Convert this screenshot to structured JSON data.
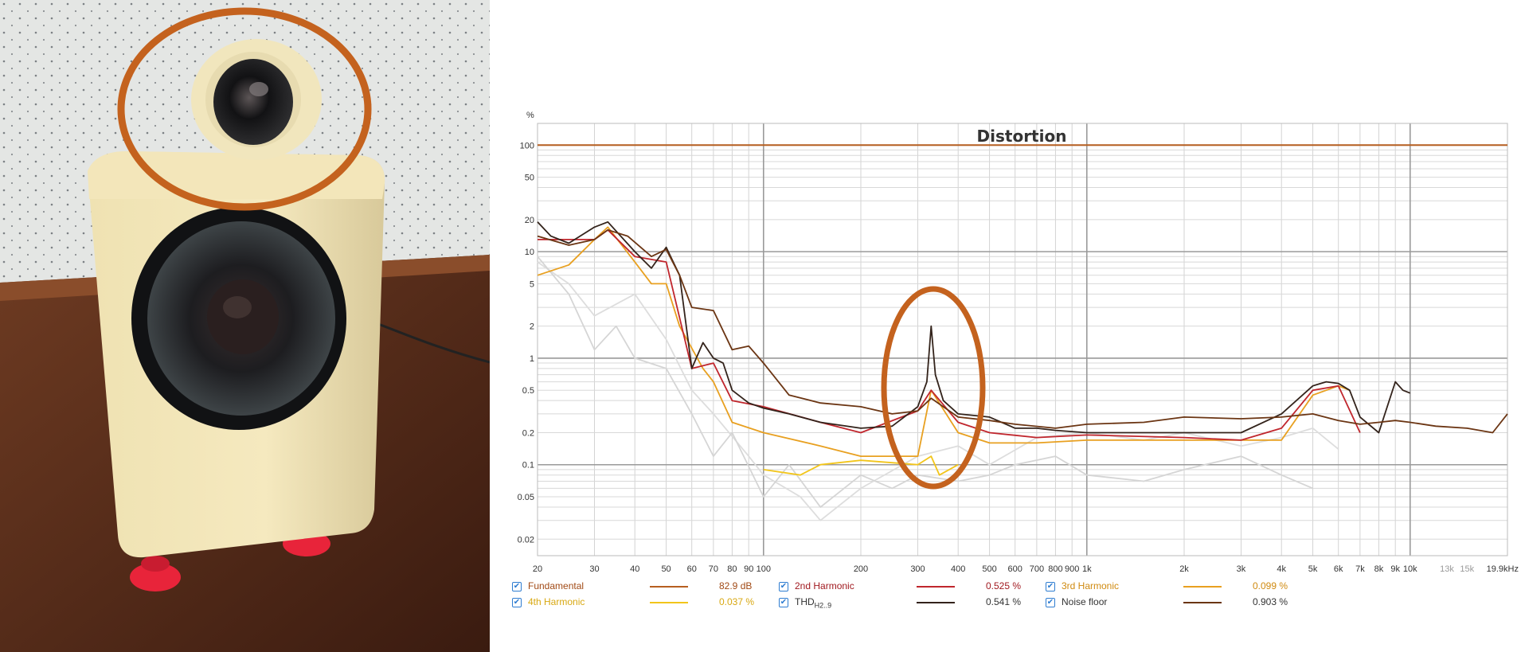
{
  "chart_data": {
    "type": "line",
    "title": "Distortion",
    "ylabel": "%",
    "xlabel": "",
    "x_scale": "log",
    "y_scale": "log",
    "xlim": [
      20,
      20000
    ],
    "ylim": [
      0.014,
      160
    ],
    "grid": true,
    "x_tick_labels": [
      {
        "v": 20,
        "t": "20"
      },
      {
        "v": 30,
        "t": "30"
      },
      {
        "v": 40,
        "t": "40"
      },
      {
        "v": 50,
        "t": "50"
      },
      {
        "v": 60,
        "t": "60"
      },
      {
        "v": 70,
        "t": "70"
      },
      {
        "v": 80,
        "t": "80"
      },
      {
        "v": 90,
        "t": "90"
      },
      {
        "v": 100,
        "t": "100"
      },
      {
        "v": 200,
        "t": "200"
      },
      {
        "v": 300,
        "t": "300"
      },
      {
        "v": 400,
        "t": "400"
      },
      {
        "v": 500,
        "t": "500"
      },
      {
        "v": 600,
        "t": "600"
      },
      {
        "v": 700,
        "t": "700"
      },
      {
        "v": 800,
        "t": "800"
      },
      {
        "v": 900,
        "t": "900"
      },
      {
        "v": 1000,
        "t": "1k"
      },
      {
        "v": 2000,
        "t": "2k"
      },
      {
        "v": 3000,
        "t": "3k"
      },
      {
        "v": 4000,
        "t": "4k"
      },
      {
        "v": 5000,
        "t": "5k"
      },
      {
        "v": 6000,
        "t": "6k"
      },
      {
        "v": 7000,
        "t": "7k"
      },
      {
        "v": 8000,
        "t": "8k"
      },
      {
        "v": 9000,
        "t": "9k"
      },
      {
        "v": 10000,
        "t": "10k"
      },
      {
        "v": 13000,
        "t": "13k"
      },
      {
        "v": 15000,
        "t": "15k"
      },
      {
        "v": 19900,
        "t": "19.9kHz"
      }
    ],
    "y_tick_labels": [
      {
        "v": 100,
        "t": "100"
      },
      {
        "v": 50,
        "t": "50"
      },
      {
        "v": 20,
        "t": "20"
      },
      {
        "v": 10,
        "t": "10"
      },
      {
        "v": 5,
        "t": "5"
      },
      {
        "v": 2,
        "t": "2"
      },
      {
        "v": 1,
        "t": "1"
      },
      {
        "v": 0.5,
        "t": "0.5"
      },
      {
        "v": 0.2,
        "t": "0.2"
      },
      {
        "v": 0.1,
        "t": "0.1"
      },
      {
        "v": 0.05,
        "t": "0.05"
      },
      {
        "v": 0.02,
        "t": "0.02"
      }
    ],
    "series": [
      {
        "name": "Fundamental",
        "color": "#b65f20",
        "value_label": "82.9 dB",
        "x": [
          20,
          20000
        ],
        "y": [
          100,
          100
        ]
      },
      {
        "name": "Noise floor",
        "color": "#6b3513",
        "value_label": "0.903 %",
        "x": [
          20,
          25,
          30,
          33,
          38,
          45,
          50,
          55,
          60,
          70,
          80,
          90,
          100,
          120,
          150,
          200,
          250,
          300,
          330,
          400,
          500,
          600,
          800,
          1000,
          1500,
          2000,
          3000,
          4000,
          5000,
          6000,
          7000,
          8000,
          9000,
          10000,
          12000,
          15000,
          18000,
          20000
        ],
        "y": [
          14,
          11.5,
          13,
          16,
          14,
          9,
          10.5,
          6,
          3,
          2.8,
          1.2,
          1.3,
          0.9,
          0.45,
          0.38,
          0.35,
          0.3,
          0.32,
          0.42,
          0.28,
          0.26,
          0.24,
          0.22,
          0.24,
          0.25,
          0.28,
          0.27,
          0.28,
          0.3,
          0.26,
          0.24,
          0.25,
          0.26,
          0.25,
          0.23,
          0.22,
          0.2,
          0.3
        ]
      },
      {
        "name": "THD H2..9",
        "color": "#33231b",
        "value_label": "0.541 %",
        "x": [
          20,
          22,
          25,
          30,
          33,
          40,
          45,
          50,
          55,
          60,
          65,
          70,
          75,
          80,
          90,
          100,
          120,
          150,
          200,
          250,
          300,
          320,
          330,
          340,
          360,
          400,
          500,
          600,
          700,
          800,
          1000,
          1500,
          2000,
          3000,
          4000,
          5000,
          5500,
          6000,
          6500,
          7000,
          8000,
          9000,
          9500,
          10000
        ],
        "y": [
          19,
          14,
          12,
          17,
          19,
          10,
          7,
          11,
          6,
          0.8,
          1.4,
          1,
          0.9,
          0.5,
          0.38,
          0.34,
          0.3,
          0.25,
          0.22,
          0.23,
          0.35,
          0.6,
          2,
          0.7,
          0.4,
          0.3,
          0.28,
          0.22,
          0.22,
          0.21,
          0.2,
          0.2,
          0.2,
          0.2,
          0.3,
          0.55,
          0.6,
          0.58,
          0.5,
          0.28,
          0.2,
          0.6,
          0.5,
          0.47
        ]
      },
      {
        "name": "2nd Harmonic",
        "color": "#c0262d",
        "value_label": "0.525 %",
        "x": [
          20,
          30,
          33,
          40,
          50,
          60,
          70,
          80,
          100,
          150,
          200,
          300,
          330,
          400,
          500,
          700,
          1000,
          2000,
          3000,
          4000,
          5000,
          6000,
          7000
        ],
        "y": [
          13,
          13,
          16,
          9,
          8,
          0.8,
          0.9,
          0.4,
          0.35,
          0.25,
          0.2,
          0.32,
          0.5,
          0.25,
          0.2,
          0.18,
          0.19,
          0.18,
          0.17,
          0.22,
          0.5,
          0.55,
          0.2
        ]
      },
      {
        "name": "3rd Harmonic",
        "color": "#e8a020",
        "value_label": "0.099 %",
        "x": [
          20,
          25,
          30,
          33,
          40,
          45,
          50,
          55,
          65,
          70,
          80,
          100,
          150,
          200,
          300,
          330,
          400,
          500,
          700,
          1000,
          2000,
          3000,
          4000,
          5000,
          6000,
          6500
        ],
        "y": [
          6,
          7.5,
          13,
          17,
          8,
          5,
          5,
          2,
          0.8,
          0.6,
          0.25,
          0.2,
          0.15,
          0.12,
          0.12,
          0.5,
          0.2,
          0.16,
          0.16,
          0.17,
          0.17,
          0.17,
          0.17,
          0.45,
          0.55,
          0.5
        ]
      },
      {
        "name": "4th Harmonic",
        "color": "#f2c51a",
        "value_label": "0.037 %",
        "x": [
          100,
          130,
          150,
          200,
          300,
          330,
          350,
          400
        ],
        "y": [
          0.09,
          0.08,
          0.1,
          0.11,
          0.1,
          0.12,
          0.08,
          0.1
        ]
      },
      {
        "name": "",
        "color": "#d5d5d5",
        "value_label": "",
        "x": [
          20,
          25,
          30,
          35,
          40,
          50,
          60,
          70,
          80,
          100,
          120,
          150,
          200,
          250,
          300,
          400,
          500,
          600,
          800,
          1000,
          1500,
          2000,
          3000,
          4000,
          5000
        ],
        "y": [
          9,
          4,
          1.2,
          2,
          1,
          0.8,
          0.3,
          0.12,
          0.2,
          0.05,
          0.1,
          0.04,
          0.08,
          0.06,
          0.08,
          0.07,
          0.08,
          0.1,
          0.12,
          0.08,
          0.07,
          0.09,
          0.12,
          0.08,
          0.06
        ]
      },
      {
        "name": "",
        "color": "#dddddd",
        "value_label": "",
        "x": [
          20,
          25,
          30,
          40,
          50,
          60,
          70,
          90,
          100,
          130,
          150,
          200,
          300,
          400,
          500,
          700,
          1000,
          1500,
          2000,
          3000,
          4000,
          5000,
          6000
        ],
        "y": [
          8,
          5,
          2.5,
          4,
          1.5,
          0.5,
          0.3,
          0.12,
          0.08,
          0.05,
          0.03,
          0.06,
          0.12,
          0.15,
          0.1,
          0.18,
          0.2,
          0.17,
          0.2,
          0.15,
          0.18,
          0.22,
          0.14
        ]
      }
    ]
  },
  "legend": [
    {
      "label": "Fundamental",
      "value": "82.9 dB",
      "color": "#b65f20",
      "text_color": "#a14a16"
    },
    {
      "label": "2nd Harmonic",
      "value": "0.525 %",
      "color": "#c0262d",
      "text_color": "#a11a20"
    },
    {
      "label": "3rd Harmonic",
      "value": "0.099 %",
      "color": "#e8a020",
      "text_color": "#d08a10"
    },
    {
      "label": "4th Harmonic",
      "value": "0.037 %",
      "color": "#f2c51a",
      "text_color": "#d8a812"
    },
    {
      "label": "THD",
      "sub": "H2..9",
      "value": "0.541 %",
      "color": "#33231b",
      "text_color": "#333333"
    },
    {
      "label": "Noise floor",
      "value": "0.903 %",
      "color": "#6b3513",
      "text_color": "#333333"
    }
  ]
}
